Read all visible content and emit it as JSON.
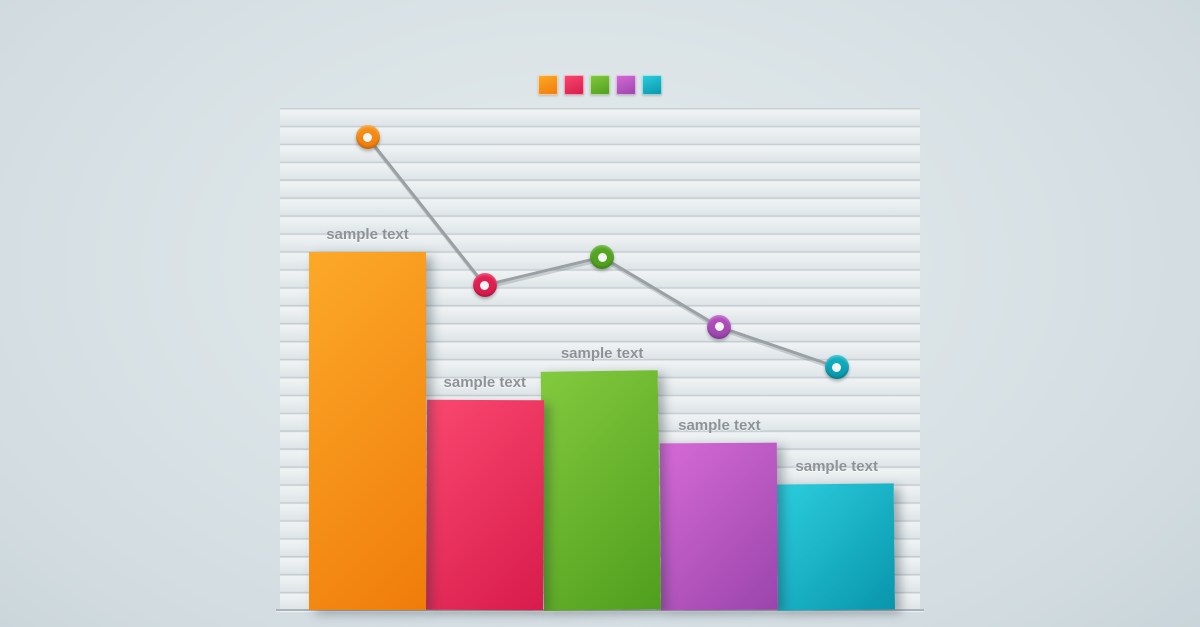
{
  "legend": {
    "items": [
      {
        "name": "orange",
        "color_light": "#fca928",
        "color_dark": "#f07c0a"
      },
      {
        "name": "pink",
        "color_light": "#f9486f",
        "color_dark": "#d81b4b"
      },
      {
        "name": "green",
        "color_light": "#83ca3e",
        "color_dark": "#4f9e1d"
      },
      {
        "name": "purple",
        "color_light": "#d66ad6",
        "color_dark": "#9a45ab"
      },
      {
        "name": "cyan",
        "color_light": "#2ccede",
        "color_dark": "#0895ab"
      }
    ]
  },
  "chart_data": {
    "type": "bar",
    "title": "",
    "xlabel": "",
    "ylabel": "",
    "grid": true,
    "legend_position": "top-center",
    "categories": [
      "sample text",
      "sample text",
      "sample text",
      "sample text",
      "sample text"
    ],
    "series": [
      {
        "name": "bars",
        "type": "bar",
        "values_pct": [
          71.3,
          41.8,
          47.6,
          33.3,
          25.1
        ],
        "colors": [
          {
            "name": "orange",
            "light": "#fca928",
            "dark": "#f07c0a"
          },
          {
            "name": "pink",
            "light": "#f9486f",
            "dark": "#d81b4b"
          },
          {
            "name": "green",
            "light": "#83ca3e",
            "dark": "#4f9e1d"
          },
          {
            "name": "purple",
            "light": "#d66ad6",
            "dark": "#9a45ab"
          },
          {
            "name": "cyan",
            "light": "#2ccede",
            "dark": "#0895ab"
          }
        ]
      },
      {
        "name": "trend-line",
        "type": "line",
        "line_color": "#9aa0a3",
        "values_pct": [
          94.2,
          64.7,
          70.3,
          56.4,
          48.4
        ],
        "marker_colors": [
          {
            "name": "orange",
            "ring": "#f7941d"
          },
          {
            "name": "pink",
            "ring": "#e62154"
          },
          {
            "name": "green",
            "ring": "#56a823"
          },
          {
            "name": "purple",
            "ring": "#b94fc2"
          },
          {
            "name": "cyan",
            "ring": "#12b4c4"
          }
        ]
      }
    ]
  }
}
